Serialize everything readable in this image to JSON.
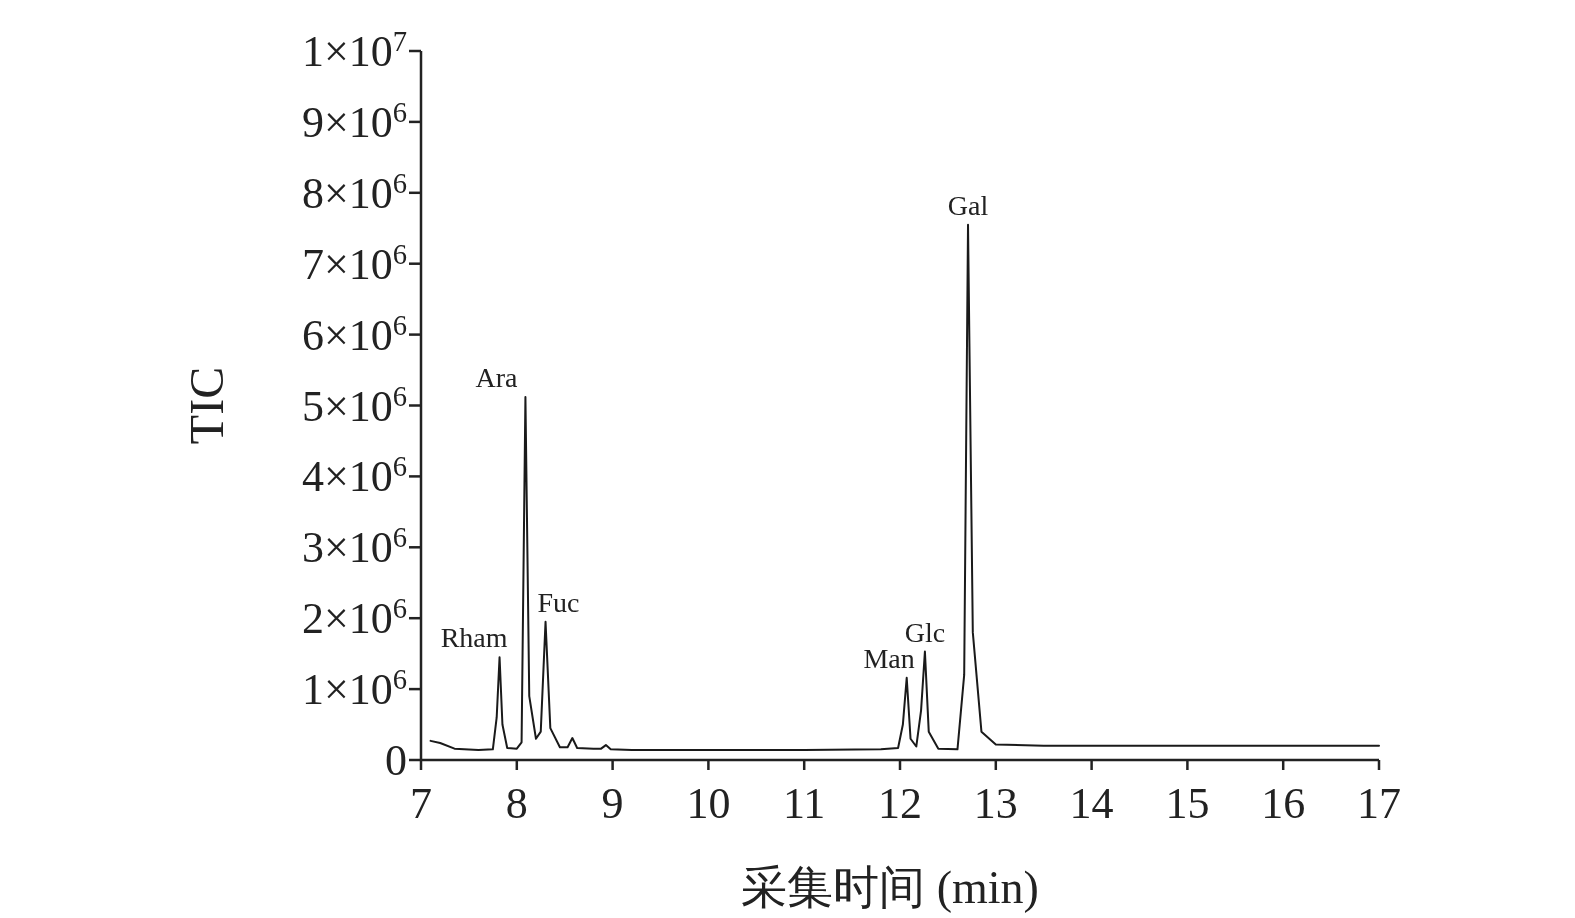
{
  "chart_data": {
    "type": "line",
    "xlabel": "采集时间 (min)",
    "ylabel": "TIC",
    "xlim": [
      7,
      17
    ],
    "xticks": [
      7,
      8,
      9,
      10,
      11,
      12,
      13,
      14,
      15,
      16,
      17
    ],
    "ylim": [
      0,
      10000000
    ],
    "yticks": [
      {
        "value": 0,
        "label": "0"
      },
      {
        "value": 1000000,
        "label": "1×10$^{6}$"
      },
      {
        "value": 2000000,
        "label": "2×10$^{6}$"
      },
      {
        "value": 3000000,
        "label": "3×10$^{6}$"
      },
      {
        "value": 4000000,
        "label": "4×10$^{6}$"
      },
      {
        "value": 5000000,
        "label": "5×10$^{6}$"
      },
      {
        "value": 6000000,
        "label": "6×10$^{6}$"
      },
      {
        "value": 7000000,
        "label": "7×10$^{6}$"
      },
      {
        "value": 8000000,
        "label": "8×10$^{6}$"
      },
      {
        "value": 9000000,
        "label": "9×10$^{6}$"
      },
      {
        "value": 10000000,
        "label": "1×10$^{7}$"
      }
    ],
    "grid": false,
    "x": [
      7.1,
      7.2,
      7.35,
      7.6,
      7.75,
      7.79,
      7.82,
      7.85,
      7.9,
      8.0,
      8.05,
      8.09,
      8.13,
      8.2,
      8.25,
      8.3,
      8.35,
      8.45,
      8.53,
      8.58,
      8.63,
      8.8,
      8.88,
      8.93,
      8.98,
      9.2,
      10,
      11,
      11.8,
      11.98,
      12.03,
      12.07,
      12.11,
      12.17,
      12.22,
      12.26,
      12.3,
      12.4,
      12.6,
      12.67,
      12.71,
      12.76,
      12.85,
      13,
      13.5,
      14,
      15,
      16,
      17
    ],
    "series": [
      {
        "color": "#1a1a1a",
        "values": [
          270000,
          240000,
          160000,
          140000,
          150000,
          600000,
          1450000,
          500000,
          170000,
          160000,
          250000,
          5120000,
          900000,
          300000,
          400000,
          1950000,
          450000,
          180000,
          180000,
          310000,
          170000,
          160000,
          160000,
          210000,
          150000,
          140000,
          140000,
          140000,
          150000,
          170000,
          500000,
          1160000,
          300000,
          190000,
          700000,
          1530000,
          400000,
          160000,
          150000,
          1200000,
          7550000,
          1800000,
          400000,
          220000,
          200000,
          200000,
          200000,
          200000,
          200000
        ]
      }
    ],
    "annotations": [
      {
        "text": "Rham",
        "x": 7.82,
        "y": 1450000
      },
      {
        "text": "Ara",
        "x": 8.09,
        "y": 5120000
      },
      {
        "text": "Fuc",
        "x": 8.3,
        "y": 1950000
      },
      {
        "text": "Man",
        "x": 12.07,
        "y": 1160000
      },
      {
        "text": "Glc",
        "x": 12.26,
        "y": 1530000
      },
      {
        "text": "Gal",
        "x": 12.71,
        "y": 7550000
      }
    ]
  }
}
